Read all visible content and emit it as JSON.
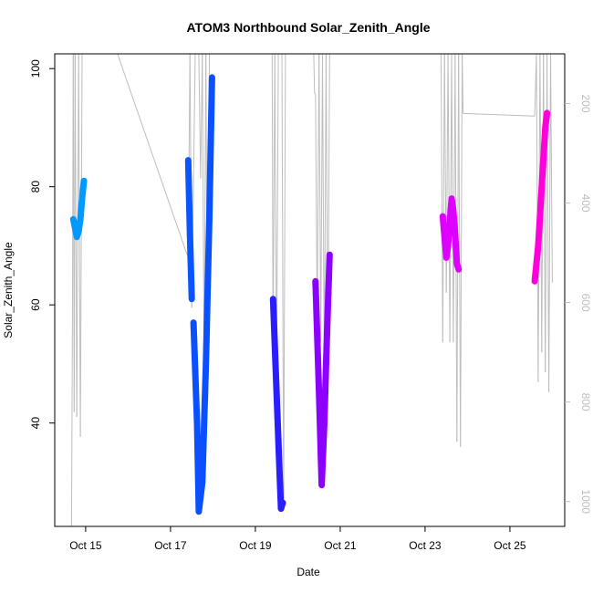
{
  "chart_data": {
    "type": "line",
    "title": "ATOM3 Northbound Solar_Zenith_Angle",
    "xlabel": "Date",
    "ylabel": "Solar_Zenith_Angle",
    "xlim": [
      "2016-10-14T06:30",
      "2016-10-26T07:00"
    ],
    "ylim": [
      22.5,
      102.5
    ],
    "x_ticks": [
      {
        "label": "Oct 15",
        "date": "2016-10-15"
      },
      {
        "label": "Oct 17",
        "date": "2016-10-17"
      },
      {
        "label": "Oct 19",
        "date": "2016-10-19"
      },
      {
        "label": "Oct 21",
        "date": "2016-10-21"
      },
      {
        "label": "Oct 23",
        "date": "2016-10-23"
      },
      {
        "label": "Oct 25",
        "date": "2016-10-25"
      }
    ],
    "y_ticks": [
      40,
      60,
      80,
      100
    ],
    "right_axis": {
      "ticks": [
        200,
        400,
        600,
        800,
        1000
      ],
      "range": [
        100,
        1050
      ],
      "reversed": true,
      "color": "#bdbdbd"
    },
    "grid": false,
    "legend": "none",
    "series": [
      {
        "color": "#0099ff",
        "points": [
          [
            "2016-10-14T17:00",
            74.5
          ],
          [
            "2016-10-14T18:00",
            73.0
          ],
          [
            "2016-10-14T19:00",
            71.5
          ],
          [
            "2016-10-14T20:00",
            72.5
          ],
          [
            "2016-10-14T21:00",
            74.5
          ],
          [
            "2016-10-14T22:00",
            78.0
          ],
          [
            "2016-10-14T23:00",
            81.0
          ]
        ]
      },
      {
        "color": "#0a55ff",
        "points": [
          [
            "2016-10-17T10:00",
            84.5
          ],
          [
            "2016-10-17T11:00",
            72.0
          ],
          [
            "2016-10-17T12:00",
            61.0
          ]
        ]
      },
      {
        "color": "#0a50ff",
        "points": [
          [
            "2016-10-17T13:00",
            57.0
          ],
          [
            "2016-10-17T15:00",
            40.0
          ],
          [
            "2016-10-17T16:00",
            25.0
          ],
          [
            "2016-10-17T18:00",
            30.0
          ],
          [
            "2016-10-17T20:00",
            50.0
          ],
          [
            "2016-10-17T22:00",
            75.0
          ],
          [
            "2016-10-17T23:30",
            98.5
          ]
        ]
      },
      {
        "color": "#2a1eff",
        "points": [
          [
            "2016-10-19T10:00",
            61.0
          ],
          [
            "2016-10-19T12:00",
            45.0
          ],
          [
            "2016-10-19T13:30",
            33.0
          ],
          [
            "2016-10-19T14:30",
            25.5
          ],
          [
            "2016-10-19T15:30",
            26.5
          ]
        ]
      },
      {
        "color": "#8c00ff",
        "points": [
          [
            "2016-10-20T10:00",
            64.0
          ],
          [
            "2016-10-20T12:00",
            45.0
          ],
          [
            "2016-10-20T13:30",
            29.5
          ],
          [
            "2016-10-20T15:00",
            40.0
          ],
          [
            "2016-10-20T16:30",
            55.0
          ],
          [
            "2016-10-20T18:00",
            68.5
          ]
        ]
      },
      {
        "color": "#dd00ff",
        "points": [
          [
            "2016-10-23T10:00",
            75.0
          ],
          [
            "2016-10-23T12:00",
            68.0
          ],
          [
            "2016-10-23T13:00",
            70.0
          ],
          [
            "2016-10-23T15:00",
            78.0
          ],
          [
            "2016-10-23T16:00",
            76.0
          ],
          [
            "2016-10-23T17:00",
            72.0
          ],
          [
            "2016-10-23T18:00",
            67.0
          ],
          [
            "2016-10-23T19:00",
            66.0
          ]
        ]
      },
      {
        "color": "#ff00dd",
        "points": [
          [
            "2016-10-25T14:00",
            64.0
          ],
          [
            "2016-10-25T16:00",
            70.0
          ],
          [
            "2016-10-25T17:00",
            75.0
          ],
          [
            "2016-10-25T18:00",
            80.0
          ],
          [
            "2016-10-25T19:00",
            85.0
          ],
          [
            "2016-10-25T20:00",
            90.0
          ],
          [
            "2016-10-25T21:00",
            92.5
          ]
        ]
      }
    ],
    "altitude_trace": {
      "color": "#bdbdbd",
      "axis": "right",
      "points": [
        [
          "2016-10-14T16:00",
          1100
        ],
        [
          "2016-10-14T16:30",
          640
        ],
        [
          "2016-10-14T17:00",
          20
        ],
        [
          "2016-10-14T17:30",
          820
        ],
        [
          "2016-10-14T18:00",
          20
        ],
        [
          "2016-10-14T19:00",
          830
        ],
        [
          "2016-10-14T20:00",
          20
        ],
        [
          "2016-10-14T21:00",
          870
        ],
        [
          "2016-10-14T22:00",
          20
        ],
        [
          "2016-10-14T23:30",
          20
        ],
        [
          "2016-10-15T18:00",
          20
        ],
        [
          "2016-10-17T09:30",
          505
        ],
        [
          "2016-10-17T10:00",
          505
        ],
        [
          "2016-10-17T11:00",
          20
        ],
        [
          "2016-10-17T12:00",
          610
        ],
        [
          "2016-10-17T14:00",
          20
        ],
        [
          "2016-10-17T16:00",
          20
        ],
        [
          "2016-10-17T17:00",
          350
        ],
        [
          "2016-10-17T18:00",
          20
        ],
        [
          "2016-10-17T19:00",
          720
        ],
        [
          "2016-10-17T20:00",
          20
        ],
        [
          "2016-10-17T21:00",
          800
        ],
        [
          "2016-10-17T22:00",
          20
        ],
        [
          "2016-10-19T09:30",
          20
        ],
        [
          "2016-10-19T10:00",
          690
        ],
        [
          "2016-10-19T11:00",
          20
        ],
        [
          "2016-10-19T12:00",
          750
        ],
        [
          "2016-10-19T13:00",
          20
        ],
        [
          "2016-10-19T15:00",
          20
        ],
        [
          "2016-10-19T16:00",
          1000
        ],
        [
          "2016-10-19T17:00",
          20
        ],
        [
          "2016-10-20T09:00",
          20
        ],
        [
          "2016-10-20T09:30",
          180
        ],
        [
          "2016-10-20T10:00",
          180
        ],
        [
          "2016-10-20T11:00",
          640
        ],
        [
          "2016-10-20T12:00",
          20
        ],
        [
          "2016-10-20T13:00",
          680
        ],
        [
          "2016-10-20T14:00",
          20
        ],
        [
          "2016-10-20T15:00",
          760
        ],
        [
          "2016-10-20T16:00",
          20
        ],
        [
          "2016-10-20T17:00",
          720
        ],
        [
          "2016-10-20T18:00",
          20
        ],
        [
          "2016-10-23T09:00",
          20
        ],
        [
          "2016-10-23T10:00",
          680
        ],
        [
          "2016-10-23T11:00",
          20
        ],
        [
          "2016-10-23T12:00",
          580
        ],
        [
          "2016-10-23T13:00",
          20
        ],
        [
          "2016-10-23T14:00",
          680
        ],
        [
          "2016-10-23T15:00",
          20
        ],
        [
          "2016-10-23T16:00",
          680
        ],
        [
          "2016-10-23T17:00",
          20
        ],
        [
          "2016-10-23T18:00",
          880
        ],
        [
          "2016-10-23T19:00",
          20
        ],
        [
          "2016-10-23T20:00",
          890
        ],
        [
          "2016-10-23T21:00",
          20
        ],
        [
          "2016-10-23T21:30",
          220
        ],
        [
          "2016-10-25T14:00",
          225
        ],
        [
          "2016-10-25T15:00",
          20
        ],
        [
          "2016-10-25T16:00",
          760
        ],
        [
          "2016-10-25T17:00",
          20
        ],
        [
          "2016-10-25T18:00",
          700
        ],
        [
          "2016-10-25T19:00",
          20
        ],
        [
          "2016-10-25T20:00",
          740
        ],
        [
          "2016-10-25T21:00",
          20
        ],
        [
          "2016-10-25T22:00",
          780
        ],
        [
          "2016-10-25T23:00",
          20
        ],
        [
          "2016-10-26T00:00",
          560
        ]
      ]
    }
  }
}
